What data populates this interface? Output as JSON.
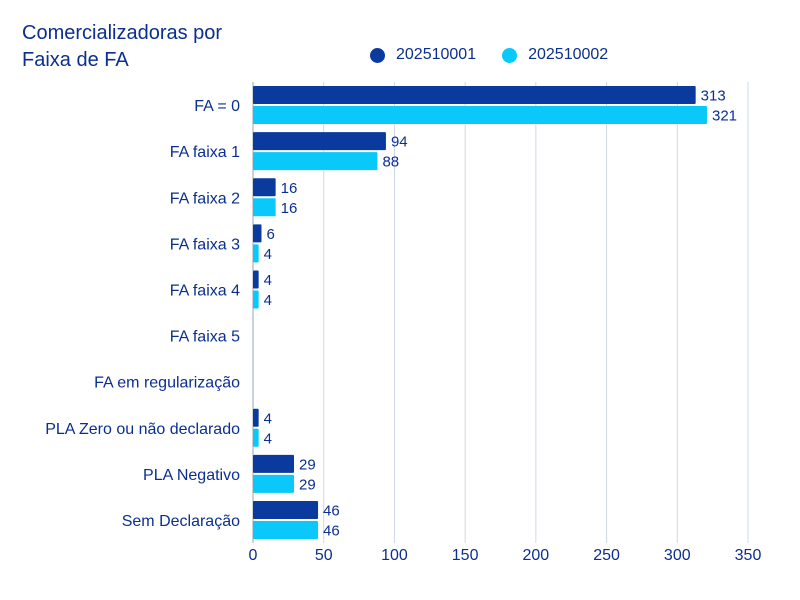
{
  "chart_data": {
    "type": "bar",
    "orientation": "horizontal",
    "title": "Comercializadoras por Faixa de FA",
    "categories": [
      "FA = 0",
      "FA faixa 1",
      "FA faixa 2",
      "FA faixa 3",
      "FA faixa 4",
      "FA faixa 5",
      "FA em regularização",
      "PLA Zero ou não declarado",
      "PLA Negativo",
      "Sem Declaração"
    ],
    "series": [
      {
        "name": "202510001",
        "color": "#0a3a9e",
        "values": [
          313,
          94,
          16,
          6,
          4,
          0,
          0,
          4,
          29,
          46
        ]
      },
      {
        "name": "202510002",
        "color": "#0ac8fa",
        "values": [
          321,
          88,
          16,
          4,
          4,
          0,
          0,
          4,
          29,
          46
        ]
      }
    ],
    "xlim": [
      0,
      350
    ],
    "xticks": [
      0,
      50,
      100,
      150,
      200,
      250,
      300,
      350
    ],
    "grid": true,
    "legend_position": "top"
  }
}
